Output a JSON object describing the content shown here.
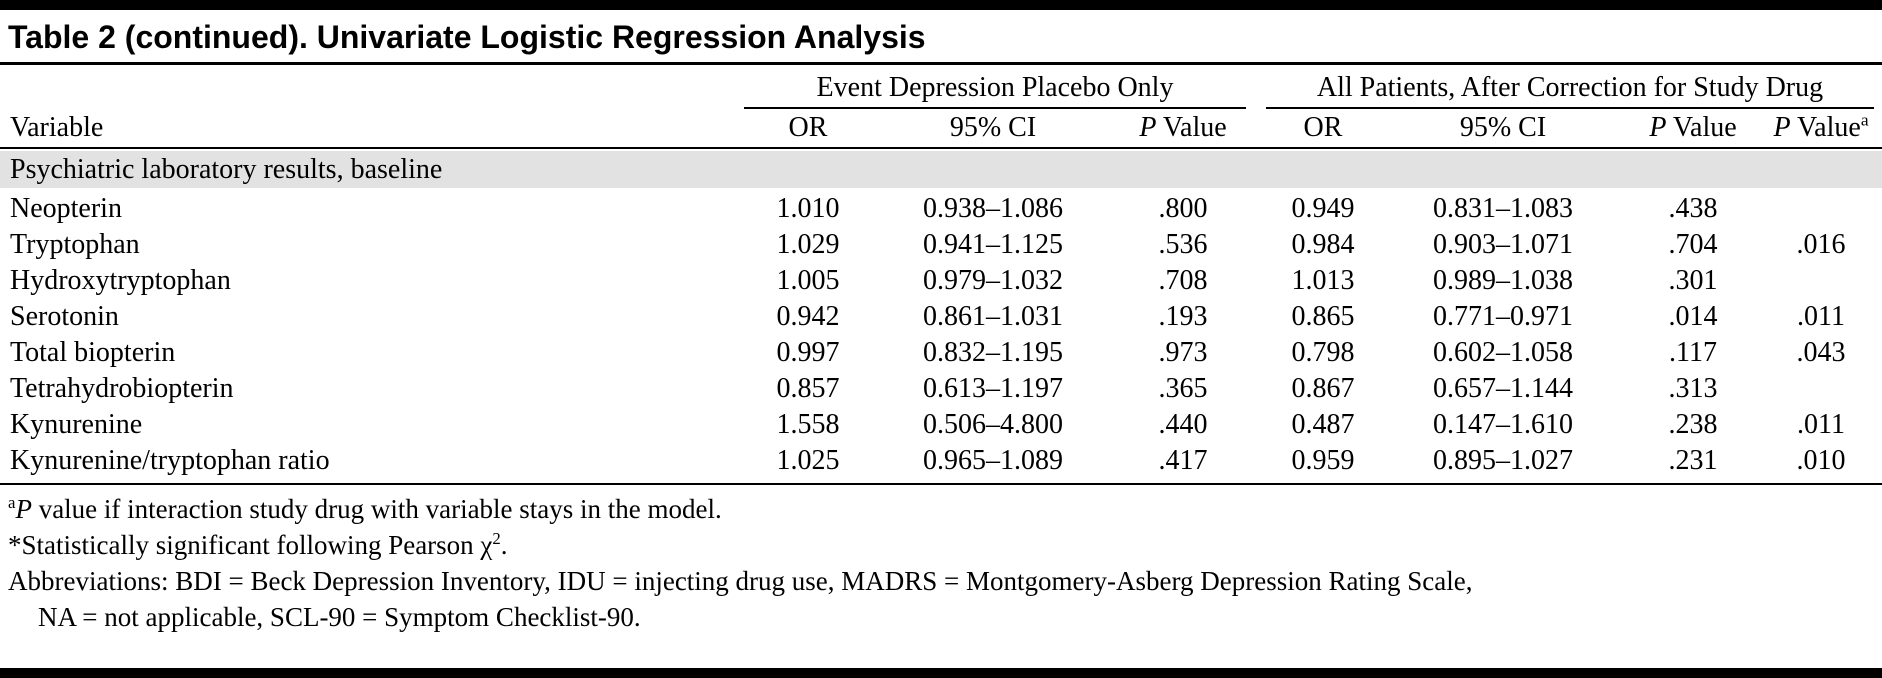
{
  "table": {
    "title": "Table 2 (continued). Univariate Logistic Regression Analysis",
    "col_groups": [
      {
        "label": "Event Depression Placebo Only",
        "span": 3
      },
      {
        "label": "All Patients, After Correction for Study Drug",
        "span": 4
      }
    ],
    "headers": {
      "variable": "Variable",
      "or": "OR",
      "ci": "95% CI",
      "p_italic": "P",
      "p_rest": " Value",
      "p_sup": "a"
    },
    "section": "Psychiatric laboratory results, baseline",
    "rows": [
      {
        "variable": "Neopterin",
        "values": [
          "1.010",
          "0.938–1.086",
          ".800",
          "0.949",
          "0.831–1.083",
          ".438",
          ""
        ]
      },
      {
        "variable": "Tryptophan",
        "values": [
          "1.029",
          "0.941–1.125",
          ".536",
          "0.984",
          "0.903–1.071",
          ".704",
          ".016"
        ]
      },
      {
        "variable": "Hydroxytryptophan",
        "values": [
          "1.005",
          "0.979–1.032",
          ".708",
          "1.013",
          "0.989–1.038",
          ".301",
          ""
        ]
      },
      {
        "variable": "Serotonin",
        "values": [
          "0.942",
          "0.861–1.031",
          ".193",
          "0.865",
          "0.771–0.971",
          ".014",
          ".011"
        ]
      },
      {
        "variable": "Total biopterin",
        "values": [
          "0.997",
          "0.832–1.195",
          ".973",
          "0.798",
          "0.602–1.058",
          ".117",
          ".043"
        ]
      },
      {
        "variable": "Tetrahydrobiopterin",
        "values": [
          "0.857",
          "0.613–1.197",
          ".365",
          "0.867",
          "0.657–1.144",
          ".313",
          ""
        ]
      },
      {
        "variable": "Kynurenine",
        "values": [
          "1.558",
          "0.506–4.800",
          ".440",
          "0.487",
          "0.147–1.610",
          ".238",
          ".011"
        ]
      },
      {
        "variable": "Kynurenine/tryptophan ratio",
        "values": [
          "1.025",
          "0.965–1.089",
          ".417",
          "0.959",
          "0.895–1.027",
          ".231",
          ".010"
        ]
      }
    ],
    "footnotes": {
      "fn1": {
        "sup": "a",
        "italic": "P",
        "text": " value if interaction study drug with variable stays in the model."
      },
      "fn2": {
        "pre": "*Statistically significant following Pearson χ",
        "sup": "2",
        "post": "."
      },
      "fn3_line1": "Abbreviations: BDI = Beck Depression Inventory, IDU = injecting drug use, MADRS = Montgomery-Asberg Depression Rating Scale,",
      "fn3_line2": "NA = not applicable, SCL-90 = Symptom Checklist-90."
    }
  }
}
